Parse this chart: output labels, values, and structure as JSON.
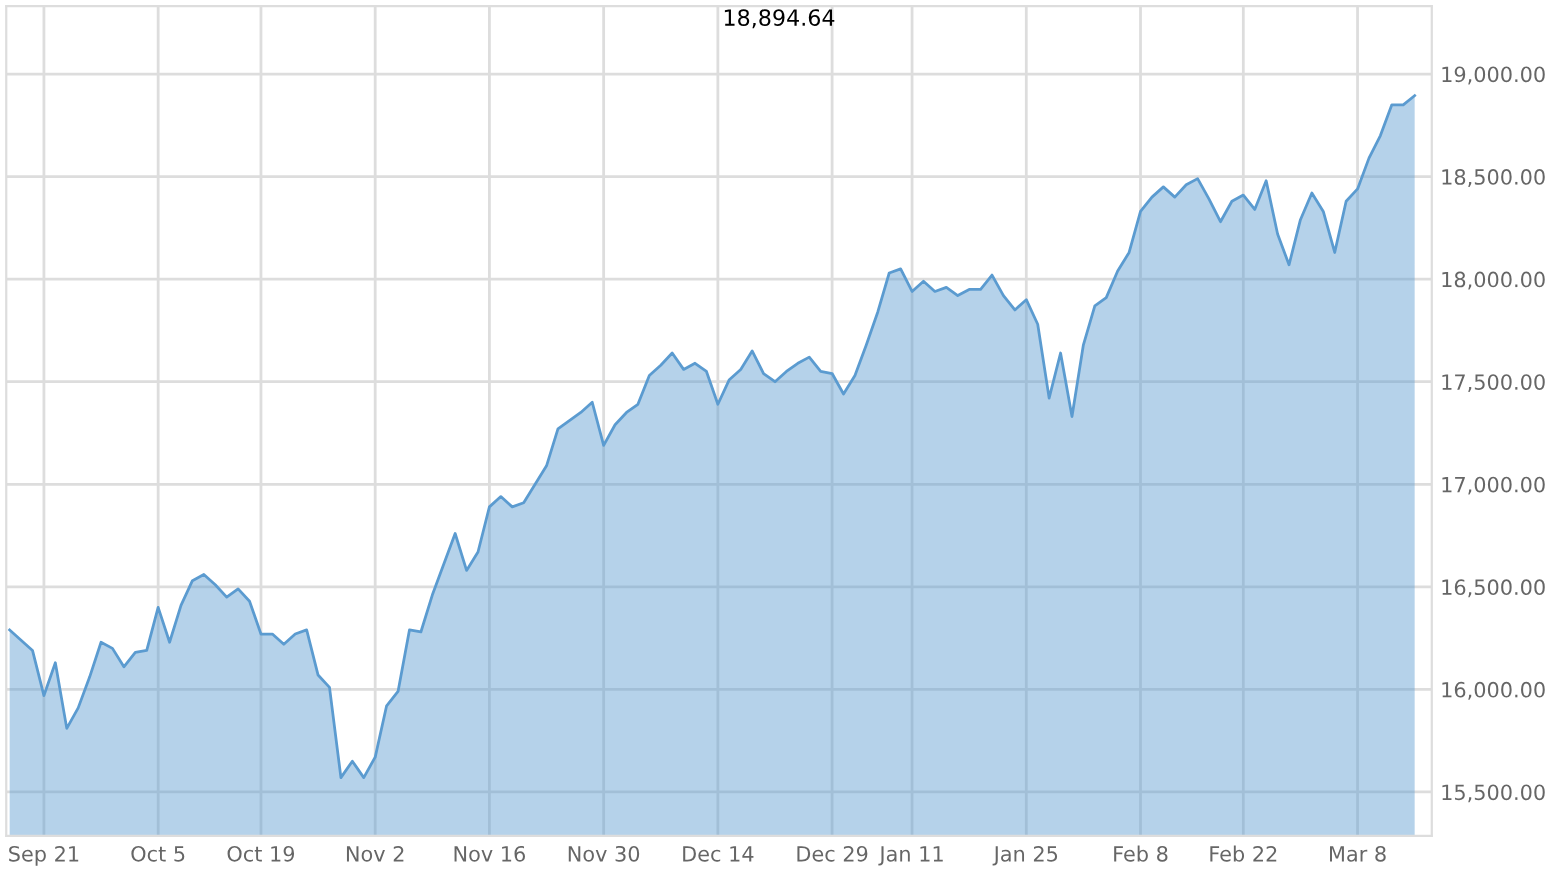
{
  "chart_data": {
    "type": "area",
    "categories": [
      null,
      null,
      null,
      "Sep 21",
      null,
      null,
      null,
      null,
      null,
      null,
      null,
      null,
      null,
      "Oct 5",
      null,
      null,
      null,
      null,
      null,
      null,
      null,
      null,
      "Oct 19",
      null,
      null,
      null,
      null,
      null,
      null,
      null,
      null,
      null,
      "Nov 2",
      null,
      null,
      null,
      null,
      null,
      null,
      null,
      null,
      null,
      "Nov 16",
      null,
      null,
      null,
      null,
      null,
      null,
      null,
      null,
      null,
      "Nov 30",
      null,
      null,
      null,
      null,
      null,
      null,
      null,
      null,
      null,
      "Dec 14",
      null,
      null,
      null,
      null,
      null,
      null,
      null,
      null,
      null,
      "Dec 29",
      null,
      null,
      null,
      null,
      null,
      null,
      "Jan 11",
      null,
      null,
      null,
      null,
      null,
      null,
      null,
      null,
      null,
      "Jan 25",
      null,
      null,
      null,
      null,
      null,
      null,
      null,
      null,
      null,
      "Feb 8",
      null,
      null,
      null,
      null,
      null,
      null,
      null,
      null,
      "Feb 22",
      null,
      null,
      null,
      null,
      null,
      null,
      null,
      null,
      null,
      "Mar 8",
      null,
      null,
      null,
      null,
      null
    ],
    "series": [
      {
        "color": "#5b9bd0",
        "values": [
          16290,
          16240,
          16190,
          15970,
          16130,
          15810,
          15910,
          16060,
          16230,
          16200,
          16110,
          16180,
          16190,
          16400,
          16230,
          16410,
          16530,
          16560,
          16510,
          16450,
          16490,
          16430,
          16270,
          16270,
          16220,
          16270,
          16290,
          16070,
          16010,
          15570,
          15650,
          15570,
          15670,
          15920,
          15990,
          16290,
          16280,
          16460,
          16610,
          16760,
          16580,
          16670,
          16890,
          16940,
          16890,
          16910,
          17000,
          17090,
          17270,
          17310,
          17350,
          17400,
          17190,
          17290,
          17350,
          17390,
          17530,
          17580,
          17640,
          17560,
          17590,
          17550,
          17390,
          17510,
          17560,
          17650,
          17540,
          17500,
          17550,
          17590,
          17620,
          17550,
          17540,
          17440,
          17530,
          17680,
          17840,
          18030,
          18050,
          17940,
          17990,
          17940,
          17960,
          17920,
          17950,
          17950,
          18020,
          17920,
          17850,
          17900,
          17780,
          17420,
          17640,
          17330,
          17680,
          17870,
          17910,
          18040,
          18130,
          18330,
          18400,
          18450,
          18400,
          18460,
          18490,
          18390,
          18280,
          18380,
          18410,
          18340,
          18480,
          18220,
          18070,
          18290,
          18420,
          18330,
          18130,
          18380,
          18440,
          18590,
          18700,
          18850,
          18850,
          18894.64
        ]
      }
    ],
    "ylim": [
      15286,
      19331
    ],
    "yticks": [
      {
        "value": 15500,
        "label": "15,500.00"
      },
      {
        "value": 16000,
        "label": "16,000.00"
      },
      {
        "value": 16500,
        "label": "16,500.00"
      },
      {
        "value": 17000,
        "label": "17,000.00"
      },
      {
        "value": 17500,
        "label": "17,500.00"
      },
      {
        "value": 18000,
        "label": "18,000.00"
      },
      {
        "value": 18500,
        "label": "18,500.00"
      },
      {
        "value": 19000,
        "label": "19,000.00"
      }
    ],
    "annotations": [
      "18,894.64"
    ],
    "grid": true,
    "legend": false
  }
}
